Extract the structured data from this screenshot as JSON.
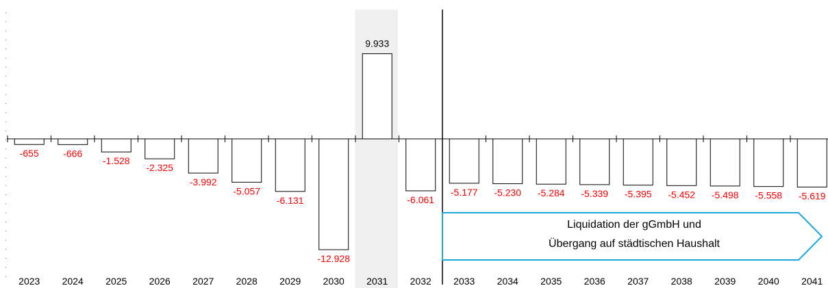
{
  "chart_data": {
    "type": "bar",
    "categories": [
      "2023",
      "2024",
      "2025",
      "2026",
      "2027",
      "2028",
      "2029",
      "2030",
      "2031",
      "2032",
      "2033",
      "2034",
      "2035",
      "2036",
      "2037",
      "2038",
      "2039",
      "2040",
      "2041"
    ],
    "values": [
      -655,
      -666,
      -1528,
      -2325,
      -3992,
      -5057,
      -6131,
      -12928,
      9933,
      -6061,
      -5177,
      -5230,
      -5284,
      -5339,
      -5395,
      -5452,
      -5498,
      -5558,
      -5619
    ],
    "value_labels": [
      "-655",
      "-666",
      "-1.528",
      "-2.325",
      "-3.992",
      "-5.057",
      "-6.131",
      "-12.928",
      "9.933",
      "-6.061",
      "-5.177",
      "-5.230",
      "-5.284",
      "-5.339",
      "-5.395",
      "-5.452",
      "-5.498",
      "-5.558",
      "-5.619"
    ],
    "highlighted_category": "2031",
    "divider_after": "2032",
    "annotation": {
      "line1": "Liquidation der gGmbH und",
      "line2": "Übergang auf städtischen Haushalt",
      "range": [
        "2033",
        "2041"
      ]
    },
    "colors": {
      "negative_label": "#ff0000",
      "positive_label": "#000000",
      "highlight_band": "#f0f0f0",
      "callout_border": "#1aa7e0",
      "bar_fill": "#ffffff",
      "bar_stroke": "#000000"
    },
    "ylim": [
      -15000,
      12000
    ],
    "title": "",
    "xlabel": "",
    "ylabel": "",
    "grid": false,
    "legend": "none"
  }
}
